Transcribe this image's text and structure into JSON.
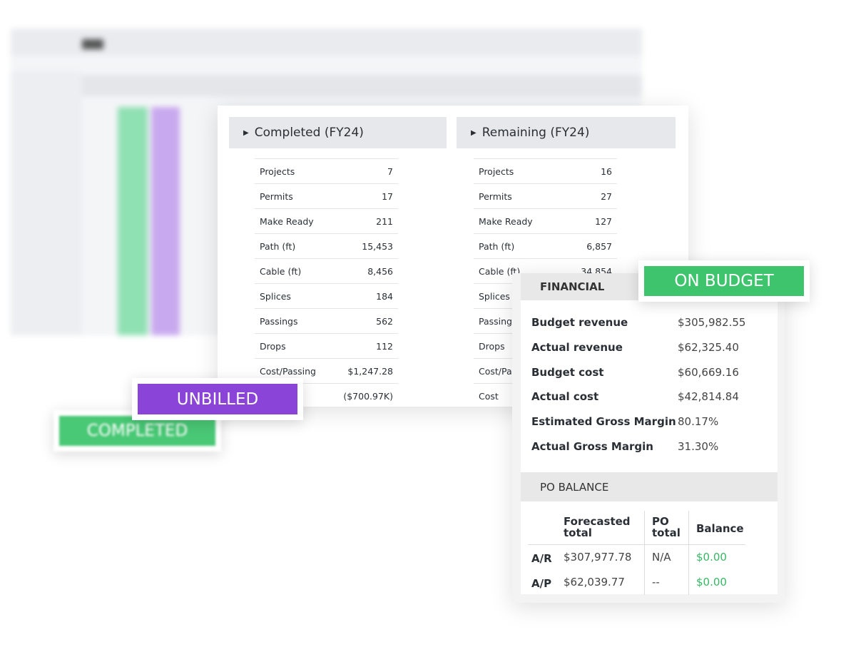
{
  "completed": {
    "title": "Completed (FY24)",
    "rows": [
      [
        "Projects",
        "7"
      ],
      [
        "Permits",
        "17"
      ],
      [
        "Make Ready",
        "211"
      ],
      [
        "Path (ft)",
        "15,453"
      ],
      [
        "Cable (ft)",
        "8,456"
      ],
      [
        "Splices",
        "184"
      ],
      [
        "Passings",
        "562"
      ],
      [
        "Drops",
        "112"
      ],
      [
        "Cost/Passing",
        "$1,247.28"
      ],
      [
        null,
        "($700.97K)"
      ]
    ]
  },
  "remaining": {
    "title": "Remaining (FY24)",
    "rows": [
      [
        "Projects",
        "16"
      ],
      [
        "Permits",
        "27"
      ],
      [
        "Make Ready",
        "127"
      ],
      [
        "Path (ft)",
        "6,857"
      ],
      [
        "Cable (ft)",
        "34,854"
      ],
      [
        "Splices"
      ],
      [
        "Passings"
      ],
      [
        "Drops"
      ],
      [
        "Cost/Passing"
      ],
      [
        "Cost"
      ]
    ]
  },
  "financial": {
    "title": "FINANCIAL",
    "rows": [
      [
        "Budget revenue",
        "$305,982.55"
      ],
      [
        "Actual revenue",
        "$62,325.40"
      ],
      [
        "Budget cost",
        "$60,669.16"
      ],
      [
        "Actual cost",
        "$42,814.84"
      ],
      [
        "Estimated Gross Margin",
        "80.17%"
      ],
      [
        "Actual Gross Margin",
        "31.30%"
      ]
    ]
  },
  "po_balance": {
    "title": "PO BALANCE",
    "columns": [
      "Forecasted total",
      "PO total",
      "Balance"
    ],
    "rows": [
      [
        "A/R",
        "$307,977.78",
        "N/A",
        "$0.00"
      ],
      [
        "A/P",
        "$62,039.77",
        "--",
        "$0.00"
      ]
    ]
  },
  "badges": {
    "on_budget": "ON BUDGET",
    "unbilled": "UNBILLED",
    "completed": "COMPLETED"
  }
}
